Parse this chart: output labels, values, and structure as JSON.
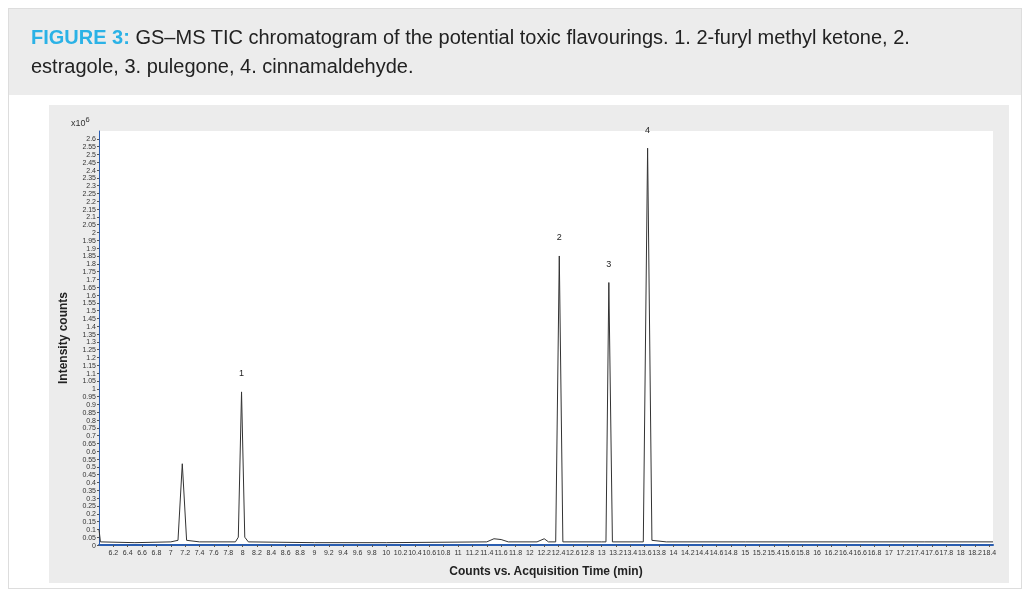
{
  "chart_data": {
    "type": "line",
    "title": "FIGURE 3:",
    "subtitle": "GS–MS TIC chromatogram of the potential toxic flavourings. 1. 2-furyl methyl ketone, 2. estragole, 3. pulegone, 4. cinnamaldehyde.",
    "xlabel": "Counts vs. Acquisition Time (min)",
    "ylabel": "Intensity counts",
    "annotations": [
      "x10$^{6}$",
      {
        "text": "1",
        "x": 7.985,
        "y": 0.98
      },
      {
        "text": "2",
        "x": 12.41,
        "y": 1.85
      },
      {
        "text": "3",
        "x": 13.1,
        "y": 1.68
      },
      {
        "text": "4",
        "x": 13.64,
        "y": 2.54
      }
    ],
    "series": [
      {
        "color": "#333333",
        "x": [
          6.0,
          6.02,
          6.5,
          7.0,
          7.1,
          7.16,
          7.22,
          7.4,
          7.9,
          7.94,
          7.985,
          8.03,
          8.08,
          9.0,
          10.0,
          11.4,
          11.5,
          11.6,
          11.7,
          12.1,
          12.2,
          12.26,
          12.36,
          12.41,
          12.46,
          13.0,
          13.06,
          13.1,
          13.15,
          13.58,
          13.64,
          13.7,
          13.9,
          15.0,
          17.5,
          18.45
        ],
        "values": [
          0.1,
          0.02,
          0.015,
          0.02,
          0.03,
          0.52,
          0.03,
          0.02,
          0.02,
          0.05,
          0.98,
          0.05,
          0.02,
          0.015,
          0.015,
          0.02,
          0.04,
          0.035,
          0.02,
          0.02,
          0.04,
          0.02,
          0.02,
          1.85,
          0.02,
          0.02,
          0.02,
          1.68,
          0.02,
          0.02,
          2.54,
          0.03,
          0.02,
          0.02,
          0.02,
          0.02
        ]
      }
    ],
    "xlim": [
      6.0,
      18.45
    ],
    "xticks": [
      6.2,
      6.4,
      6.6,
      6.8,
      7,
      7.2,
      7.4,
      7.6,
      7.8,
      8,
      8.2,
      8.4,
      8.6,
      8.8,
      9,
      9.2,
      9.4,
      9.6,
      9.8,
      10,
      10.2,
      10.4,
      10.6,
      10.8,
      11,
      11.2,
      11.4,
      11.6,
      11.8,
      12,
      12.2,
      12.4,
      12.6,
      12.8,
      13,
      13.2,
      13.4,
      13.6,
      13.8,
      14,
      14.2,
      14.4,
      14.6,
      14.8,
      15,
      15.2,
      15.4,
      15.6,
      15.8,
      16,
      16.2,
      16.4,
      16.6,
      16.8,
      17,
      17.2,
      17.4,
      17.6,
      17.8,
      18,
      18.2,
      18.4
    ],
    "ylim": [
      0,
      2.65
    ],
    "yticks": [
      0,
      0.05,
      0.1,
      0.15,
      0.2,
      0.25,
      0.3,
      0.35,
      0.4,
      0.45,
      0.5,
      0.55,
      0.6,
      0.65,
      0.7,
      0.75,
      0.8,
      0.85,
      0.9,
      0.95,
      1,
      1.05,
      1.1,
      1.15,
      1.2,
      1.25,
      1.3,
      1.35,
      1.4,
      1.45,
      1.5,
      1.55,
      1.6,
      1.65,
      1.7,
      1.75,
      1.8,
      1.85,
      1.9,
      1.95,
      2,
      2.05,
      2.1,
      2.15,
      2.2,
      2.25,
      2.3,
      2.35,
      2.4,
      2.45,
      2.5,
      2.55,
      2.6
    ],
    "marker": "none",
    "line_style": "solid"
  }
}
